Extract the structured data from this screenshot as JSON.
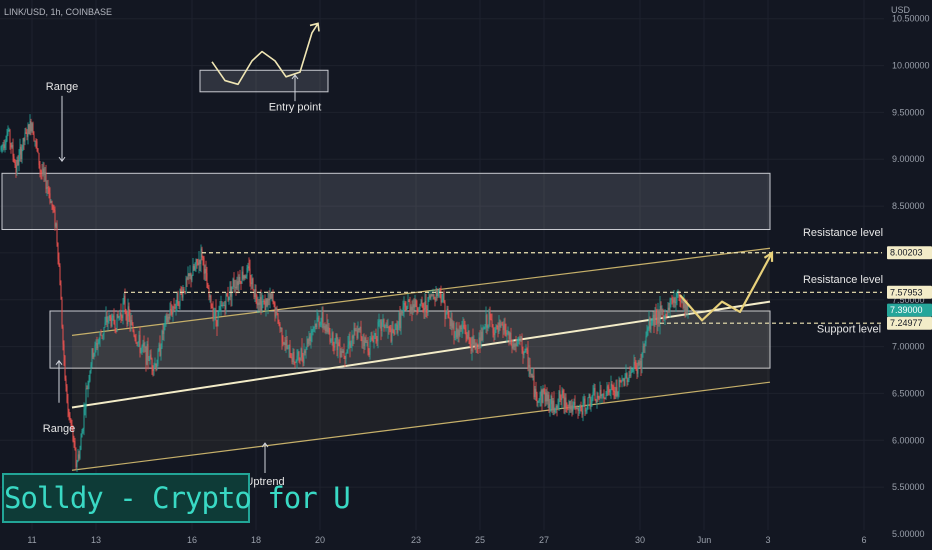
{
  "header": {
    "symbol": "LINK/USD, 1h, COINBASE",
    "currency": "USD"
  },
  "brand": {
    "label": "Solldy - Crypto for U"
  },
  "colors": {
    "background": "#131722",
    "up": "#26a69a",
    "down": "#ef5350",
    "accent": "#e8d17b",
    "last_price": "#26a69a"
  },
  "chart_data": {
    "type": "candlestick",
    "title": "",
    "xlabel": "",
    "ylabel": "USD",
    "ylim": [
      4.85,
      10.7
    ],
    "y_ticks": [
      "5.00000",
      "5.50000",
      "6.00000",
      "6.50000",
      "7.00000",
      "7.50000",
      "8.00000",
      "8.50000",
      "9.00000",
      "9.50000",
      "10.00000",
      "10.50000"
    ],
    "x_ticks": [
      {
        "label": "11",
        "t": 32
      },
      {
        "label": "13",
        "t": 96
      },
      {
        "label": "16",
        "t": 192
      },
      {
        "label": "18",
        "t": 256
      },
      {
        "label": "20",
        "t": 320
      },
      {
        "label": "23",
        "t": 416
      },
      {
        "label": "25",
        "t": 480
      },
      {
        "label": "27",
        "t": 544
      },
      {
        "label": "30",
        "t": 640
      },
      {
        "label": "Jun",
        "t": 704
      },
      {
        "label": "3",
        "t": 768
      },
      {
        "label": "6",
        "t": 864
      }
    ],
    "x_unit": "hours since first bar",
    "price_path": [
      [
        0,
        9.1
      ],
      [
        8,
        9.3
      ],
      [
        16,
        8.9
      ],
      [
        24,
        9.2
      ],
      [
        32,
        9.4
      ],
      [
        40,
        8.9
      ],
      [
        48,
        8.7
      ],
      [
        56,
        8.3
      ],
      [
        60,
        7.7
      ],
      [
        64,
        6.8
      ],
      [
        68,
        6.3
      ],
      [
        72,
        6.1
      ],
      [
        76,
        5.75
      ],
      [
        80,
        5.9
      ],
      [
        86,
        6.5
      ],
      [
        92,
        6.9
      ],
      [
        100,
        7.1
      ],
      [
        108,
        7.3
      ],
      [
        116,
        7.25
      ],
      [
        124,
        7.45
      ],
      [
        132,
        7.2
      ],
      [
        140,
        7.0
      ],
      [
        148,
        6.9
      ],
      [
        156,
        6.8
      ],
      [
        164,
        7.2
      ],
      [
        172,
        7.4
      ],
      [
        180,
        7.55
      ],
      [
        188,
        7.7
      ],
      [
        196,
        7.85
      ],
      [
        202,
        8.0
      ],
      [
        208,
        7.55
      ],
      [
        216,
        7.3
      ],
      [
        224,
        7.45
      ],
      [
        232,
        7.65
      ],
      [
        240,
        7.75
      ],
      [
        248,
        7.8
      ],
      [
        256,
        7.55
      ],
      [
        264,
        7.45
      ],
      [
        272,
        7.5
      ],
      [
        280,
        7.2
      ],
      [
        288,
        6.95
      ],
      [
        296,
        6.85
      ],
      [
        304,
        6.95
      ],
      [
        312,
        7.2
      ],
      [
        320,
        7.3
      ],
      [
        328,
        7.15
      ],
      [
        336,
        7.05
      ],
      [
        344,
        6.95
      ],
      [
        352,
        7.1
      ],
      [
        360,
        7.15
      ],
      [
        368,
        7.0
      ],
      [
        376,
        7.15
      ],
      [
        384,
        7.25
      ],
      [
        392,
        7.1
      ],
      [
        400,
        7.3
      ],
      [
        408,
        7.45
      ],
      [
        416,
        7.45
      ],
      [
        424,
        7.4
      ],
      [
        432,
        7.55
      ],
      [
        440,
        7.6
      ],
      [
        448,
        7.3
      ],
      [
        456,
        7.15
      ],
      [
        464,
        7.2
      ],
      [
        472,
        7.0
      ],
      [
        480,
        7.05
      ],
      [
        488,
        7.3
      ],
      [
        496,
        7.15
      ],
      [
        504,
        7.2
      ],
      [
        512,
        7.0
      ],
      [
        520,
        7.05
      ],
      [
        528,
        6.85
      ],
      [
        536,
        6.45
      ],
      [
        544,
        6.5
      ],
      [
        552,
        6.35
      ],
      [
        560,
        6.45
      ],
      [
        568,
        6.4
      ],
      [
        576,
        6.3
      ],
      [
        584,
        6.35
      ],
      [
        592,
        6.45
      ],
      [
        600,
        6.45
      ],
      [
        608,
        6.55
      ],
      [
        616,
        6.5
      ],
      [
        624,
        6.65
      ],
      [
        632,
        6.75
      ],
      [
        640,
        6.8
      ],
      [
        648,
        7.2
      ],
      [
        656,
        7.35
      ],
      [
        664,
        7.3
      ],
      [
        672,
        7.5
      ],
      [
        680,
        7.55
      ],
      [
        688,
        7.39
      ]
    ],
    "price_labels": [
      {
        "value": 8.00203,
        "label": "8.00203",
        "style": "dashed"
      },
      {
        "value": 7.57953,
        "label": "7.57953",
        "style": "dashed"
      },
      {
        "value": 7.39,
        "label": "7.39000",
        "style": "last"
      },
      {
        "value": 7.24977,
        "label": "7.24977",
        "style": "dashed"
      }
    ],
    "levels": [
      {
        "value": 8.00203,
        "from_t": 202,
        "to_t": 882
      },
      {
        "value": 7.57953,
        "from_t": 124,
        "to_t": 882
      },
      {
        "value": 7.24977,
        "from_t": 660,
        "to_t": 882
      }
    ],
    "zones": [
      {
        "t0": 2,
        "t1": 770,
        "y0": 8.25,
        "y1": 8.85
      },
      {
        "t0": 50,
        "t1": 770,
        "y0": 6.77,
        "y1": 7.38
      },
      {
        "t0": 200,
        "t1": 328,
        "y0": 9.72,
        "y1": 9.95
      }
    ],
    "channel": {
      "lower": [
        [
          72,
          5.68
        ],
        [
          770,
          6.62
        ]
      ],
      "upper": [
        [
          72,
          7.12
        ],
        [
          770,
          8.05
        ]
      ],
      "mid": [
        [
          72,
          6.35
        ],
        [
          770,
          7.48
        ]
      ]
    },
    "projection": [
      [
        680,
        7.55
      ],
      [
        702,
        7.28
      ],
      [
        722,
        7.48
      ],
      [
        740,
        7.37
      ],
      [
        772,
        8.0
      ]
    ],
    "annotations": [
      {
        "text": "Range",
        "t": 62,
        "v": 9.74,
        "arrow_to": [
          62,
          8.98
        ]
      },
      {
        "text": "Range",
        "t": 59,
        "v": 6.09,
        "arrow_from": [
          59,
          6.4
        ],
        "arrow_to": [
          59,
          6.85
        ]
      },
      {
        "text": "Uptrend",
        "t": 265,
        "v": 5.52,
        "arrow_from": [
          265,
          5.65
        ],
        "arrow_to": [
          265,
          5.97
        ]
      },
      {
        "text": "Entry point",
        "t": 295,
        "v": 9.52,
        "arrow_from": [
          295,
          9.62
        ],
        "arrow_to": [
          295,
          9.9
        ]
      },
      {
        "text": "Resistance level",
        "t": 843,
        "v": 8.18
      },
      {
        "text": "Resistance level",
        "t": 843,
        "v": 7.68
      },
      {
        "text": "Support level",
        "t": 849,
        "v": 7.15
      }
    ],
    "entry_sketch": [
      [
        212,
        10.04
      ],
      [
        225,
        9.84
      ],
      [
        238,
        9.8
      ],
      [
        252,
        10.05
      ],
      [
        262,
        10.15
      ],
      [
        275,
        10.05
      ],
      [
        286,
        9.88
      ],
      [
        300,
        9.93
      ],
      [
        312,
        10.35
      ],
      [
        318,
        10.45
      ]
    ]
  }
}
